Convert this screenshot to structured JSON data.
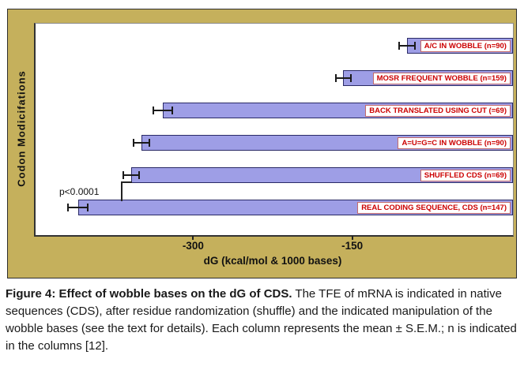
{
  "figure": {
    "colors": {
      "figure_bg": "#C5B05C",
      "plot_bg": "#FFFFFF",
      "bar_fill": "#9E9EE6",
      "bar_border": "#2A2A66",
      "label_text": "#CC0000",
      "label_box_border": "#C46A6A"
    }
  },
  "chart_data": {
    "type": "bar",
    "orientation": "horizontal",
    "categories": [
      "A/C IN WOBBLE (n=90)",
      "MOSR FREQUENT WOBBLE (n=159)",
      "BACK TRANSLATED USING CUT (=69)",
      "A=U=G=C IN WOBBLE (n=90)",
      "SHUFFLED CDS (n=69)",
      "REAL CODING SEQUENCE, CDS (n=147)"
    ],
    "values": [
      -100,
      -160,
      -330,
      -350,
      -360,
      -410
    ],
    "sem": [
      8,
      8,
      10,
      8,
      8,
      10
    ],
    "title": "",
    "xlabel": "dG (kcal/mol & 1000 bases)",
    "ylabel": "Codon Modicifations",
    "xlim": [
      -450,
      0
    ],
    "xticks": [
      -300,
      -150
    ],
    "xtick_labels": [
      "-300",
      "-150"
    ],
    "grid": false,
    "legend": false,
    "annotation": "p<0.0001"
  },
  "caption": {
    "bold": "Figure 4: Effect of wobble bases on the dG of CDS.",
    "text": " The TFE of mRNA is indicated in native sequences (CDS), after residue randomization (shuffle) and the indicated manipulation of the wobble bases (see the text for details). Each column represents the mean ± S.E.M.; n is indicated in the columns [12]."
  }
}
